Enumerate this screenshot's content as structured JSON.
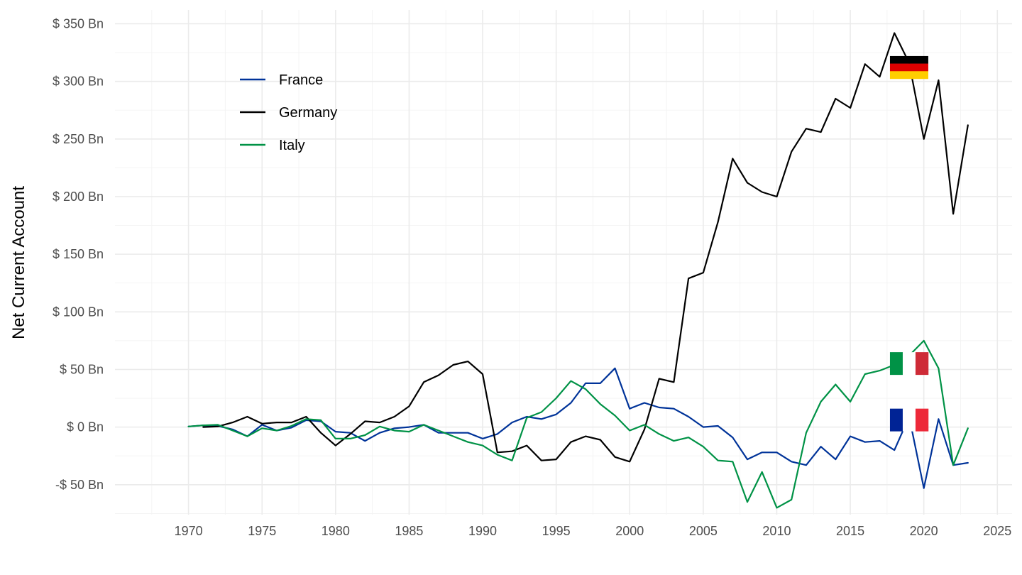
{
  "chart_data": {
    "type": "line",
    "title": "",
    "xlabel": "",
    "ylabel": "Net Current Account",
    "xlim": [
      1965,
      2026
    ],
    "ylim": [
      -76,
      362
    ],
    "x_ticks": [
      1970,
      1975,
      1980,
      1985,
      1990,
      1995,
      2000,
      2005,
      2010,
      2015,
      2020,
      2025
    ],
    "y_ticks": [
      -50,
      0,
      50,
      100,
      150,
      200,
      250,
      300,
      350
    ],
    "y_tick_labels": [
      "-$ 50 Bn",
      "$ 0 Bn",
      "$ 50 Bn",
      "$ 100 Bn",
      "$ 150 Bn",
      "$ 200 Bn",
      "$ 250 Bn",
      "$ 300 Bn",
      "$ 350 Bn"
    ],
    "grid": true,
    "legend_position": "top-left",
    "series": [
      {
        "name": "France",
        "color": "#003399",
        "x": [
          1970,
          1971,
          1972,
          1973,
          1974,
          1975,
          1976,
          1977,
          1978,
          1979,
          1980,
          1981,
          1982,
          1983,
          1984,
          1985,
          1986,
          1987,
          1988,
          1989,
          1990,
          1991,
          1992,
          1993,
          1994,
          1995,
          1996,
          1997,
          1998,
          1999,
          2000,
          2001,
          2002,
          2003,
          2004,
          2005,
          2006,
          2007,
          2008,
          2009,
          2010,
          2011,
          2012,
          2013,
          2014,
          2015,
          2016,
          2017,
          2018,
          2019,
          2020,
          2021,
          2022,
          2023
        ],
        "y": [
          0.5,
          1.5,
          1,
          -2,
          -8,
          2,
          -3,
          -0.5,
          6,
          5,
          -4,
          -5,
          -12,
          -5,
          -1,
          0,
          2,
          -5,
          -5,
          -5,
          -10,
          -6,
          4,
          9,
          7,
          11,
          21,
          38,
          38,
          51,
          16,
          21,
          17,
          16,
          9,
          0,
          1,
          -9,
          -28,
          -22,
          -22,
          -30,
          -33,
          -17,
          -28,
          -8,
          -13,
          -12,
          -20,
          9,
          -53,
          7,
          -33,
          -31
        ]
      },
      {
        "name": "Germany",
        "color": "#000000",
        "x": [
          1971,
          1972,
          1973,
          1974,
          1975,
          1976,
          1977,
          1978,
          1979,
          1980,
          1981,
          1982,
          1983,
          1984,
          1985,
          1986,
          1987,
          1988,
          1989,
          1990,
          1991,
          1992,
          1993,
          1994,
          1995,
          1996,
          1997,
          1998,
          1999,
          2000,
          2001,
          2002,
          2003,
          2004,
          2005,
          2006,
          2007,
          2008,
          2009,
          2010,
          2011,
          2012,
          2013,
          2014,
          2015,
          2016,
          2017,
          2018,
          2019,
          2020,
          2021,
          2022,
          2023
        ],
        "y": [
          0,
          0.5,
          4,
          9,
          3,
          4,
          4,
          9,
          -5,
          -16,
          -6,
          5,
          4,
          9,
          18,
          39,
          45,
          54,
          57,
          46,
          -22,
          -21,
          -16,
          -29,
          -28,
          -13,
          -8,
          -11,
          -26,
          -30,
          -2,
          42,
          39,
          129,
          134,
          178,
          233,
          212,
          204,
          200,
          239,
          259,
          256,
          285,
          277,
          315,
          304,
          342,
          316,
          250,
          301,
          185,
          262
        ]
      },
      {
        "name": "Italy",
        "color": "#009246",
        "x": [
          1970,
          1971,
          1972,
          1973,
          1974,
          1975,
          1976,
          1977,
          1978,
          1979,
          1980,
          1981,
          1982,
          1983,
          1984,
          1985,
          1986,
          1987,
          1988,
          1989,
          1990,
          1991,
          1992,
          1993,
          1994,
          1995,
          1996,
          1997,
          1998,
          1999,
          2000,
          2001,
          2002,
          2003,
          2004,
          2005,
          2006,
          2007,
          2008,
          2009,
          2010,
          2011,
          2012,
          2013,
          2014,
          2015,
          2016,
          2017,
          2018,
          2019,
          2020,
          2021,
          2022,
          2023
        ],
        "y": [
          0.5,
          1.5,
          2,
          -3,
          -8,
          -1,
          -3,
          1,
          7,
          6,
          -10,
          -10,
          -7,
          0.5,
          -3,
          -4,
          2,
          -3,
          -8,
          -13,
          -16,
          -24,
          -29,
          8,
          13,
          25,
          40,
          33,
          20,
          10,
          -3,
          2,
          -6,
          -12,
          -9,
          -17,
          -29,
          -30,
          -65,
          -39,
          -70,
          -63,
          -5,
          22,
          37,
          22,
          46,
          49,
          54,
          62,
          75,
          51,
          -33,
          -1
        ]
      }
    ],
    "annotations": [
      {
        "type": "flag",
        "country": "Germany",
        "x": 2019,
        "y": 322,
        "colors": [
          "#000000",
          "#DD0000",
          "#FFCE00"
        ],
        "orientation": "horizontal-stripes"
      },
      {
        "type": "flag",
        "country": "Italy",
        "x": 2019,
        "y": 65,
        "colors": [
          "#009246",
          "#FFFFFF",
          "#CE2B37"
        ],
        "orientation": "vertical-stripes"
      },
      {
        "type": "flag",
        "country": "France",
        "x": 2019,
        "y": 16,
        "colors": [
          "#002395",
          "#FFFFFF",
          "#ED2939"
        ],
        "orientation": "vertical-stripes"
      }
    ]
  }
}
